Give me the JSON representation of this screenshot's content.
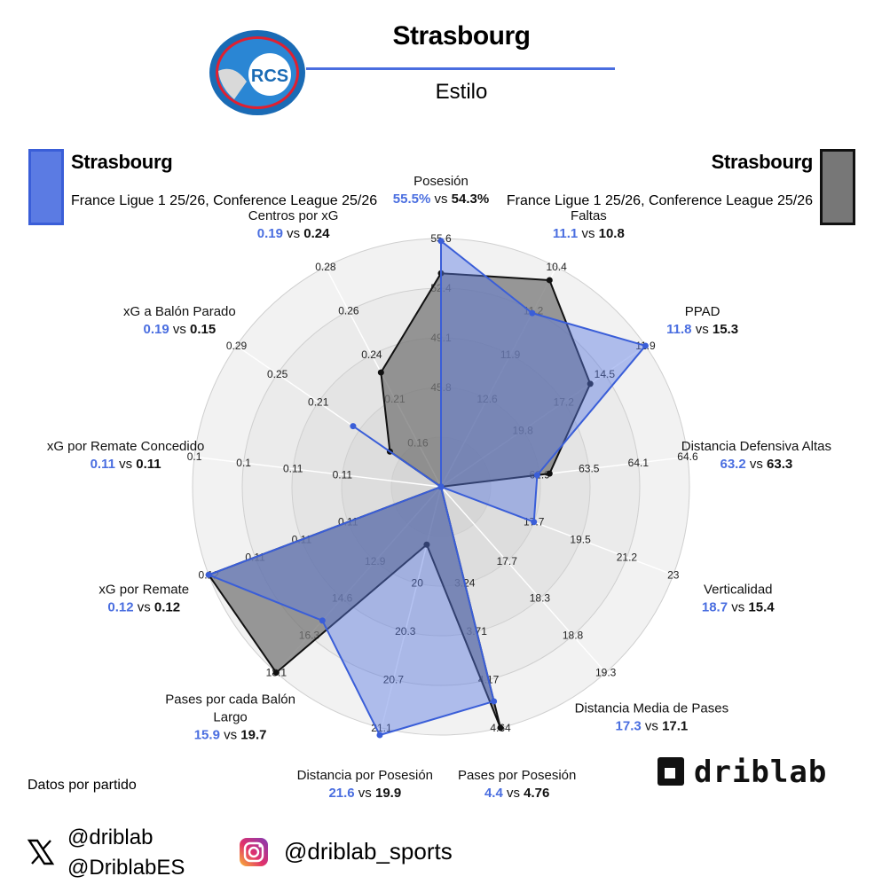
{
  "header": {
    "title": "Strasbourg",
    "subtitle": "Estilo",
    "logo_text": "RACING CLUB DE STRASBOURG ALSACE",
    "logo_mark": "RCS"
  },
  "legend": {
    "left_team": "Strasbourg",
    "left_competition": "France Ligue 1 25/26, Conference League 25/26",
    "right_team": "Strasbourg",
    "right_competition": "France Ligue 1 25/26, Conference League 25/26"
  },
  "colors": {
    "left": "#4a6ee0",
    "right": "#555555",
    "left_fill": "#5b7be3",
    "right_fill": "#777777"
  },
  "footer": {
    "note": "Datos por partido",
    "x_handle_1": "@driblab",
    "x_handle_2": "@DriblabES",
    "instagram_handle": "@driblab_sports",
    "brand": "driblab"
  },
  "chart_data": {
    "type": "radar",
    "rings": 5,
    "grid": true,
    "axes": [
      {
        "label": "Posesión",
        "left": 55.5,
        "right": 54.3,
        "left_text": "55.5%",
        "right_text": "54.3%",
        "ticks": [
          "45.8",
          "49.1",
          "52.4",
          "55.6"
        ],
        "left_r": 0.99,
        "right_r": 0.86
      },
      {
        "label": "Faltas",
        "left": 11.1,
        "right": 10.8,
        "left_text": "11.1",
        "right_text": "10.8",
        "ticks": [
          "12.6",
          "11.9",
          "11.2",
          "10.4"
        ],
        "left_r": 0.79,
        "right_r": 0.94
      },
      {
        "label": "PPAD",
        "left": 11.8,
        "right": 15.3,
        "left_text": "11.8",
        "right_text": "15.3",
        "ticks": [
          "19.8",
          "17.2",
          "14.5",
          "11.9"
        ],
        "left_r": 1.0,
        "right_r": 0.73
      },
      {
        "label": "Distancia Defensiva Altas",
        "left": 63.2,
        "right": 63.3,
        "left_text": "63.2",
        "right_text": "63.3",
        "ticks": [
          "62.9",
          "63.5",
          "64.1",
          "64.6"
        ],
        "left_r": 0.39,
        "right_r": 0.44
      },
      {
        "label": "Verticalidad",
        "left": 18.7,
        "right": 15.4,
        "left_text": "18.7",
        "right_text": "15.4",
        "ticks": [
          "17.7",
          "19.5",
          "21.2",
          "23"
        ],
        "left_r": 0.4,
        "right_r": 0.0
      },
      {
        "label": "Distancia Media de Pases",
        "left": 17.3,
        "right": 17.1,
        "left_text": "17.3",
        "right_text": "17.1",
        "ticks": [
          "17.7",
          "18.3",
          "18.8",
          "19.3"
        ],
        "left_r": 0.0,
        "right_r": 0.0
      },
      {
        "label": "Pases por Posesión",
        "left": 4.4,
        "right": 4.76,
        "left_text": "4.4",
        "right_text": "4.76",
        "ticks": [
          "3.24",
          "3.71",
          "4.17",
          "4.64"
        ],
        "left_r": 0.89,
        "right_r": 1.0
      },
      {
        "label": "Distancia por Posesión",
        "left": 21.6,
        "right": 19.9,
        "left_text": "21.6",
        "right_text": "19.9",
        "ticks": [
          "20",
          "20.3",
          "20.7",
          "21.1"
        ],
        "left_r": 1.03,
        "right_r": 0.24
      },
      {
        "label": "Pases por cada Balón Largo",
        "left": 15.9,
        "right": 19.7,
        "left_text": "15.9",
        "right_text": "19.7",
        "ticks": [
          "12.9",
          "14.6",
          "16.3",
          "18.1"
        ],
        "left_r": 0.72,
        "right_r": 1.0
      },
      {
        "label": "xG por Remate",
        "left": 0.12,
        "right": 0.12,
        "left_text": "0.12",
        "right_text": "0.12",
        "ticks": [
          "0.11",
          "0.11",
          "0.11",
          "0.12"
        ],
        "left_r": 1.0,
        "right_r": 1.0
      },
      {
        "label": "xG por Remate Concedido",
        "left": 0.11,
        "right": 0.11,
        "left_text": "0.11",
        "right_text": "0.11",
        "ticks": [
          "0.11",
          "0.11",
          "0.1",
          "0.1"
        ],
        "left_r": 0.0,
        "right_r": 0.0
      },
      {
        "label": "xG a Balón Parado",
        "left": 0.19,
        "right": 0.15,
        "left_text": "0.19",
        "right_text": "0.15",
        "ticks": [
          "0.21",
          "0.25",
          "0.29"
        ],
        "left_r": 0.43,
        "right_r": 0.25
      },
      {
        "label": "Centros por xG",
        "left": 0.19,
        "right": 0.24,
        "left_text": "0.19",
        "right_text": "0.24",
        "ticks": [
          "0.16",
          "0.21",
          "0.24",
          "0.26",
          "0.28"
        ],
        "left_r": 0.0,
        "right_r": 0.52
      }
    ]
  }
}
